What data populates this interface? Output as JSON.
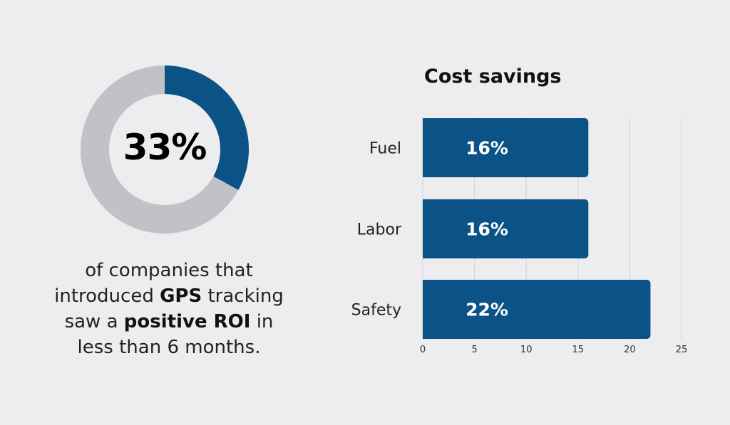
{
  "donut": {
    "value_label": "33%",
    "fraction": 0.33,
    "colors": {
      "highlight": "#0b5386",
      "rest": "#c2c2c6"
    }
  },
  "caption": {
    "line1": "of companies that",
    "line2a": "introduced ",
    "line2b": "GPS",
    "line2c": " tracking",
    "line3a": "saw a ",
    "line3b": "positive ROI",
    "line3c": " in",
    "line4": "less than 6 months."
  },
  "chart_data": {
    "type": "bar",
    "orientation": "horizontal",
    "title": "Cost savings",
    "categories": [
      "Fuel",
      "Labor",
      "Safety"
    ],
    "values": [
      16,
      16,
      22
    ],
    "data_labels": [
      "16%",
      "16%",
      "22%"
    ],
    "xlim": [
      0,
      25
    ],
    "xticks": [
      "0",
      "5",
      "10",
      "15",
      "20",
      "25"
    ],
    "grid": true,
    "bar_color": "#0b5386"
  }
}
